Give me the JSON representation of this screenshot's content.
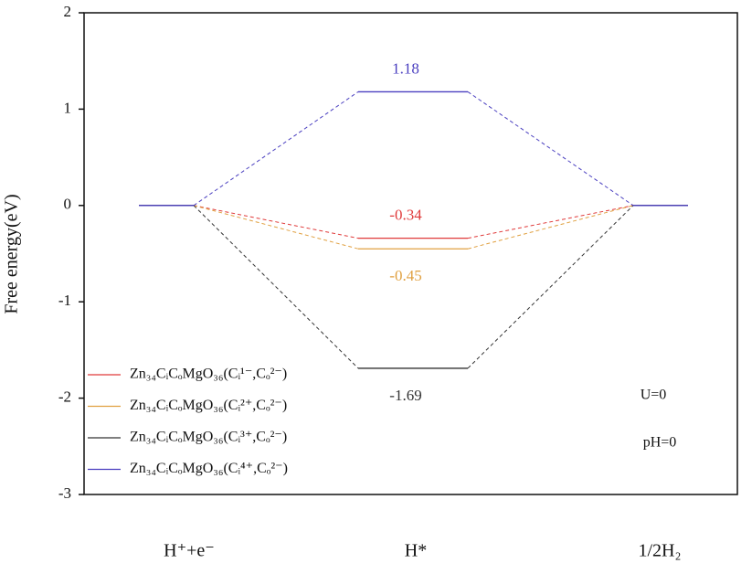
{
  "chart_data": {
    "type": "energy-levels",
    "y_label": "Free energy(eV)",
    "categories": [
      "H⁺+e⁻",
      "H*",
      "1/2H₂"
    ],
    "series": [
      {
        "name": "Zn₃₄CᵢCₒMgO₃₆(Cᵢ¹⁻,Cₒ²⁻)",
        "color": "#e03a3a",
        "values": [
          0,
          -0.34,
          0
        ]
      },
      {
        "name": "Zn₃₄CᵢCₒMgO₃₆(Cᵢ²⁺,Cₒ²⁻)",
        "color": "#e0a040",
        "values": [
          0,
          -0.45,
          0
        ]
      },
      {
        "name": "Zn₃₄CᵢCₒMgO₃₆(Cᵢ³⁺,Cₒ²⁻)",
        "color": "#333333",
        "values": [
          0,
          -1.69,
          0
        ]
      },
      {
        "name": "Zn₃₄CᵢCₒMgO₃₆(Cᵢ⁴⁺,Cₒ²⁻)",
        "color": "#4a3fc0",
        "values": [
          0,
          1.18,
          0
        ]
      }
    ],
    "ylim": [
      -3,
      2
    ],
    "yticks": [
      -3,
      -2,
      -1,
      0,
      1,
      2
    ],
    "annotations": [
      "U=0",
      "pH=0"
    ],
    "legend": "lower-left"
  }
}
